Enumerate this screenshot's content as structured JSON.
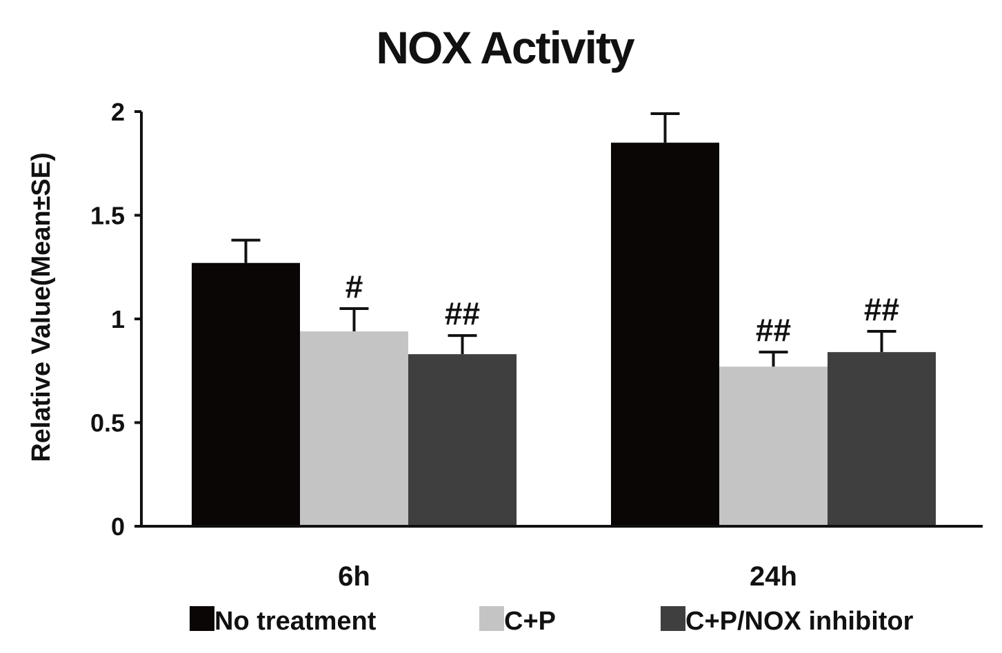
{
  "chart_data": {
    "type": "bar",
    "title": "NOX Activity",
    "xlabel": "",
    "ylabel": "Relative Value(Mean±SE)",
    "ylim": [
      0,
      2
    ],
    "yticks": [
      "0",
      "0.5",
      "1",
      "1.5",
      "2"
    ],
    "categories": [
      "6h",
      "24h"
    ],
    "grid": false,
    "legend_position": "bottom",
    "series": [
      {
        "name": "No treatment",
        "color": "#0a0606",
        "values": [
          1.27,
          1.85
        ],
        "errors": [
          0.11,
          0.14
        ],
        "annotations": [
          "",
          ""
        ]
      },
      {
        "name": "C+P",
        "color": "#c4c4c4",
        "values": [
          0.94,
          0.77
        ],
        "errors": [
          0.11,
          0.07
        ],
        "annotations": [
          "#",
          "##"
        ]
      },
      {
        "name": "C+P/NOX inhibitor",
        "color": "#3f3f3f",
        "values": [
          0.83,
          0.84
        ],
        "errors": [
          0.09,
          0.1
        ],
        "annotations": [
          "##",
          "##"
        ]
      }
    ]
  }
}
